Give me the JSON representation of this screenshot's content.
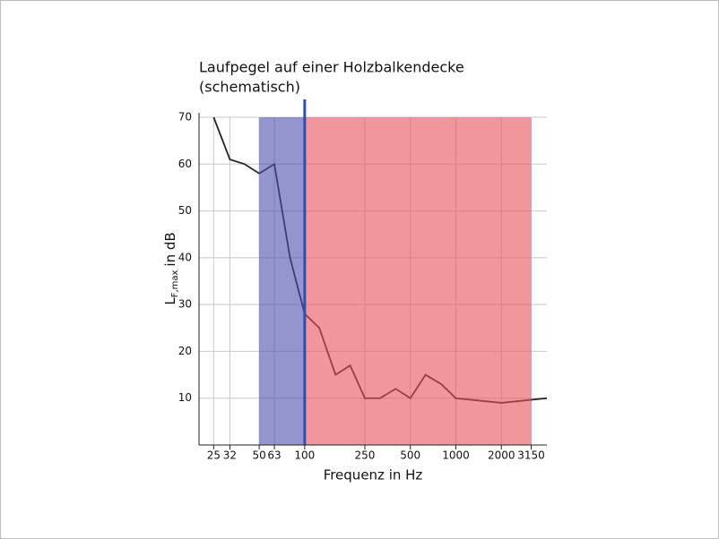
{
  "chart_data": {
    "type": "line",
    "title": [
      "Laufpegel auf einer Holzbalkendecke",
      "(schematisch)"
    ],
    "x_label": "Frequenz in Hz",
    "y_label": {
      "main": "L",
      "sub": "F,max",
      "unit": "in dB"
    },
    "log_x": true,
    "x": [
      25,
      32,
      40,
      50,
      63,
      80,
      100,
      125,
      160,
      200,
      250,
      315,
      400,
      500,
      630,
      800,
      1000,
      2000,
      4000
    ],
    "series": [
      {
        "color": "#2a1f2a",
        "values": [
          70,
          61,
          60,
          58,
          60,
          40,
          28,
          25,
          15,
          17,
          10,
          10,
          12,
          10,
          15,
          13,
          10,
          9,
          10
        ]
      }
    ],
    "bands": [
      {
        "from": 50,
        "to": 100,
        "color": "#4b4fae"
      },
      {
        "from": 100,
        "to": 3150,
        "color": "#e8505a"
      }
    ],
    "vline": {
      "at": 100,
      "color": "#2f4fb0"
    },
    "xlim": [
      20,
      4000
    ],
    "ylim": [
      0,
      70
    ],
    "xticks": [
      25,
      32,
      50,
      63,
      100,
      250,
      500,
      1000,
      2000,
      3150
    ],
    "yticks": [
      10,
      20,
      30,
      40,
      50,
      60,
      70
    ],
    "grid": true
  }
}
